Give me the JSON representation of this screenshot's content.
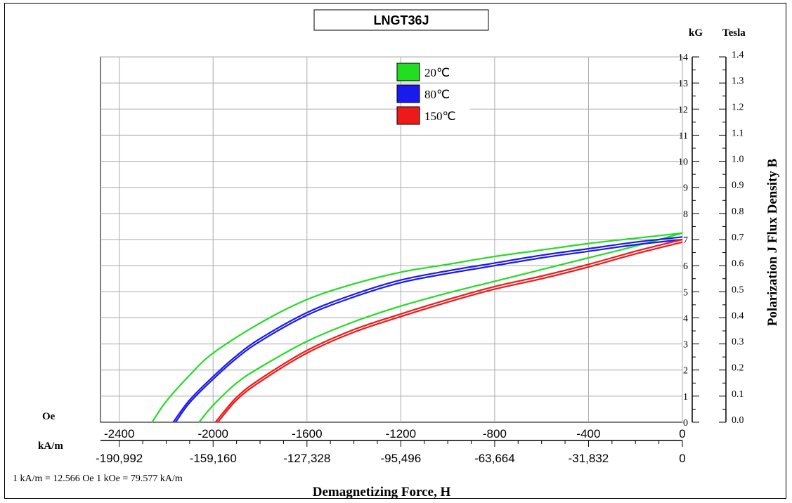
{
  "chart_data": {
    "type": "line",
    "title": "LNGT36J",
    "xlabel": "Demagnetizing Force, H",
    "ylabel": "Polarization J Flux Density B",
    "x_unit_primary": "Oe",
    "x_unit_secondary": "kA/m",
    "y_unit_left": "kG",
    "y_unit_right": "Tesla",
    "conversion_note": "1 kA/m = 12.566 Oe 1 kOe = 79.577 kA/m",
    "xlim": [
      -2480,
      0
    ],
    "ylim": [
      0,
      14
    ],
    "x_ticks": [
      {
        "value": -2400,
        "label": "-2400"
      },
      {
        "value": -2000,
        "label": "-2000"
      },
      {
        "value": -1600,
        "label": "-1600"
      },
      {
        "value": -1200,
        "label": "-1200"
      },
      {
        "value": -800,
        "label": "-800"
      },
      {
        "value": -400,
        "label": "-400"
      },
      {
        "value": 0,
        "label": "0"
      }
    ],
    "x2_ticks": [
      {
        "value": -2400,
        "label": "-190,992"
      },
      {
        "value": -2000,
        "label": "-159,160"
      },
      {
        "value": -1600,
        "label": "-127,328"
      },
      {
        "value": -1200,
        "label": "-95,496"
      },
      {
        "value": -800,
        "label": "-63,664"
      },
      {
        "value": -400,
        "label": "-31,832"
      },
      {
        "value": 0,
        "label": "0"
      }
    ],
    "y_ticks_kG": [
      "0",
      "1",
      "2",
      "3",
      "4",
      "5",
      "6",
      "7",
      "8",
      "9",
      "10",
      "11",
      "12",
      "13",
      "14"
    ],
    "y_ticks_tesla": [
      "0.0",
      "0.1",
      "0.2",
      "0.3",
      "0.4",
      "0.5",
      "0.6",
      "0.7",
      "0.8",
      "0.9",
      "1.0",
      "1.1",
      "1.2",
      "1.3",
      "1.4"
    ],
    "grid": true,
    "legend_position": "top-center",
    "series": [
      {
        "name": "20℃",
        "color": "#22dd22",
        "curve": "J",
        "x": [
          0,
          -200,
          -400,
          -600,
          -800,
          -1000,
          -1200,
          -1400,
          -1600,
          -1800,
          -2000,
          -2100,
          -2200,
          -2260
        ],
        "y": [
          7.25,
          7.05,
          6.85,
          6.6,
          6.35,
          6.05,
          5.75,
          5.3,
          4.7,
          3.8,
          2.65,
          1.8,
          0.8,
          0
        ]
      },
      {
        "name": "20℃",
        "color": "#22dd22",
        "curve": "B",
        "x": [
          0,
          -200,
          -400,
          -600,
          -800,
          -1000,
          -1200,
          -1400,
          -1600,
          -1800,
          -1900,
          -2000,
          -2060
        ],
        "y": [
          7.25,
          6.75,
          6.3,
          5.85,
          5.4,
          4.95,
          4.45,
          3.85,
          3.1,
          2.1,
          1.5,
          0.65,
          0
        ]
      },
      {
        "name": "80℃",
        "color": "#1a1aee",
        "curve": "J",
        "x": [
          0,
          -200,
          -400,
          -600,
          -800,
          -1000,
          -1200,
          -1400,
          -1600,
          -1800,
          -1900,
          -2000,
          -2100,
          -2170
        ],
        "y": [
          7.1,
          6.9,
          6.65,
          6.4,
          6.1,
          5.8,
          5.45,
          4.9,
          4.2,
          3.2,
          2.55,
          1.75,
          0.85,
          0
        ]
      },
      {
        "name": "80℃",
        "color": "#1a1aee",
        "curve": "J2",
        "x": [
          0,
          -200,
          -400,
          -600,
          -800,
          -1000,
          -1200,
          -1400,
          -1600,
          -1800,
          -1900,
          -2000,
          -2100,
          -2160
        ],
        "y": [
          7.0,
          6.8,
          6.55,
          6.3,
          6.0,
          5.7,
          5.35,
          4.8,
          4.1,
          3.1,
          2.45,
          1.65,
          0.75,
          0
        ]
      },
      {
        "name": "150℃",
        "color": "#ee1a1a",
        "curve": "B",
        "x": [
          0,
          -200,
          -400,
          -600,
          -800,
          -1000,
          -1200,
          -1400,
          -1600,
          -1800,
          -1900,
          -1990
        ],
        "y": [
          7.0,
          6.55,
          6.05,
          5.6,
          5.2,
          4.7,
          4.15,
          3.55,
          2.75,
          1.65,
          0.95,
          0
        ]
      },
      {
        "name": "150℃",
        "color": "#ee1a1a",
        "curve": "B2",
        "x": [
          0,
          -200,
          -400,
          -600,
          -800,
          -1000,
          -1200,
          -1400,
          -1600,
          -1800,
          -1900,
          -1980
        ],
        "y": [
          6.9,
          6.45,
          5.95,
          5.5,
          5.1,
          4.6,
          4.05,
          3.45,
          2.65,
          1.55,
          0.85,
          0
        ]
      }
    ],
    "legend": [
      {
        "label": "20℃",
        "color": "#22dd22"
      },
      {
        "label": "80℃",
        "color": "#1a1aee"
      },
      {
        "label": "150℃",
        "color": "#ee1a1a"
      }
    ]
  }
}
